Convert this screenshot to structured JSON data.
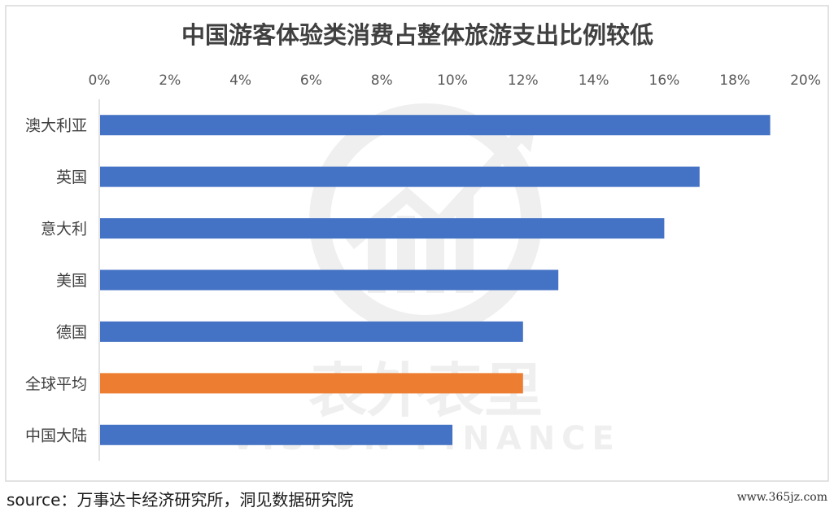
{
  "chart_data": {
    "type": "bar",
    "orientation": "horizontal",
    "title": "中国游客体验类消费占整体旅游支出比例较低",
    "categories": [
      "澳大利亚",
      "英国",
      "意大利",
      "美国",
      "德国",
      "全球平均",
      "中国大陆"
    ],
    "values": [
      19,
      17,
      16,
      13,
      12,
      12,
      10
    ],
    "x_ticks": [
      "0%",
      "2%",
      "4%",
      "6%",
      "8%",
      "10%",
      "12%",
      "14%",
      "16%",
      "18%",
      "20%"
    ],
    "xlim": [
      0,
      20
    ],
    "x_axis_position": "top",
    "grid": false,
    "legend": "none",
    "colors": {
      "default": "#4472C4",
      "highlight": "#ED7D31",
      "highlight_category": "全球平均"
    }
  },
  "watermark": {
    "brand_cn": "表外表里",
    "brand_en": "VISION FINANCE"
  },
  "footer": {
    "source_key": "source：",
    "source_text": "万事达卡经济研究所，洞见数据研究院",
    "site": "www.365jz.com"
  }
}
